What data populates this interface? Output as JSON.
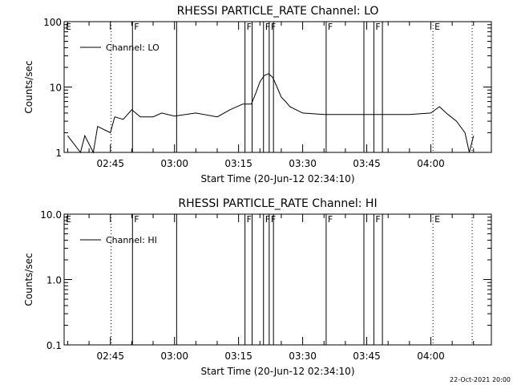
{
  "chart_data": [
    {
      "type": "line",
      "title": "RHESSI PARTICLE_RATE Channel: LO",
      "xlabel": "Start Time (20-Jun-12 02:34:10)",
      "ylabel": "Counts/sec",
      "yscale": "log",
      "ylim": [
        1,
        100
      ],
      "yticks": [
        "1",
        "10",
        "100"
      ],
      "xlim": [
        "02:34:10",
        "04:14:10"
      ],
      "xticks": [
        "02:45",
        "03:00",
        "03:15",
        "03:30",
        "03:45",
        "04:00"
      ],
      "legend": "top-left",
      "series": [
        {
          "name": "Channel: LO",
          "x": [
            "02:35",
            "02:38",
            "02:39",
            "02:41",
            "02:42",
            "02:45",
            "02:46",
            "02:48",
            "02:50",
            "02:52",
            "02:55",
            "02:57",
            "03:00",
            "03:05",
            "03:10",
            "03:13",
            "03:16",
            "03:18",
            "03:19",
            "03:20",
            "03:21",
            "03:22",
            "03:23",
            "03:24",
            "03:25",
            "03:26",
            "03:27",
            "03:30",
            "03:35",
            "03:40",
            "03:45",
            "03:50",
            "03:55",
            "04:00",
            "04:02",
            "04:04",
            "04:06",
            "04:08",
            "04:09",
            "04:10"
          ],
          "values": [
            1.8,
            1.0,
            1.8,
            1.0,
            2.5,
            2.0,
            3.5,
            3.2,
            4.5,
            3.5,
            3.5,
            4.0,
            3.6,
            4.0,
            3.5,
            4.5,
            5.5,
            5.5,
            8,
            12,
            15,
            16,
            14,
            10,
            7,
            6,
            5,
            4.0,
            3.8,
            3.8,
            3.8,
            3.8,
            3.8,
            4.0,
            5.0,
            3.8,
            3.0,
            2.0,
            1.0,
            1.8
          ]
        }
      ]
    },
    {
      "type": "line",
      "title": "RHESSI PARTICLE_RATE Channel: HI",
      "xlabel": "Start Time (20-Jun-12 02:34:10)",
      "ylabel": "Counts/sec",
      "yscale": "log",
      "ylim": [
        0.1,
        10
      ],
      "yticks": [
        "0.1",
        "1.0",
        "10.0"
      ],
      "xlim": [
        "02:34:10",
        "04:14:10"
      ],
      "xticks": [
        "02:45",
        "03:00",
        "03:15",
        "03:30",
        "03:45",
        "04:00"
      ],
      "legend": "top-left",
      "series": [
        {
          "name": "Channel: HI",
          "x": [],
          "values": []
        }
      ]
    }
  ],
  "flag_markers": [
    {
      "time": "02:34:10",
      "label": "E",
      "style": "none"
    },
    {
      "time": "02:45:10",
      "label": "",
      "style": "dotted"
    },
    {
      "time": "02:50:10",
      "label": "F",
      "style": "solid"
    },
    {
      "time": "03:00:30",
      "label": "",
      "style": "solid"
    },
    {
      "time": "03:16:30",
      "label": "F",
      "style": "solid"
    },
    {
      "time": "03:18:10",
      "label": "",
      "style": "solid"
    },
    {
      "time": "03:20:50",
      "label": "F",
      "style": "solid"
    },
    {
      "time": "03:22:10",
      "label": "F",
      "style": "solid"
    },
    {
      "time": "03:23:10",
      "label": "",
      "style": "solid"
    },
    {
      "time": "03:35:30",
      "label": "F",
      "style": "solid"
    },
    {
      "time": "03:44:20",
      "label": "",
      "style": "solid"
    },
    {
      "time": "03:46:40",
      "label": "F",
      "style": "solid"
    },
    {
      "time": "03:48:40",
      "label": "",
      "style": "solid"
    },
    {
      "time": "04:00:30",
      "label": "E",
      "style": "dotted"
    },
    {
      "time": "04:09:40",
      "label": "",
      "style": "dotted"
    }
  ],
  "footer": {
    "date_stamp": "22-Oct-2021 20:00"
  },
  "colors": {
    "background": "#ffffff",
    "foreground": "#000000"
  }
}
